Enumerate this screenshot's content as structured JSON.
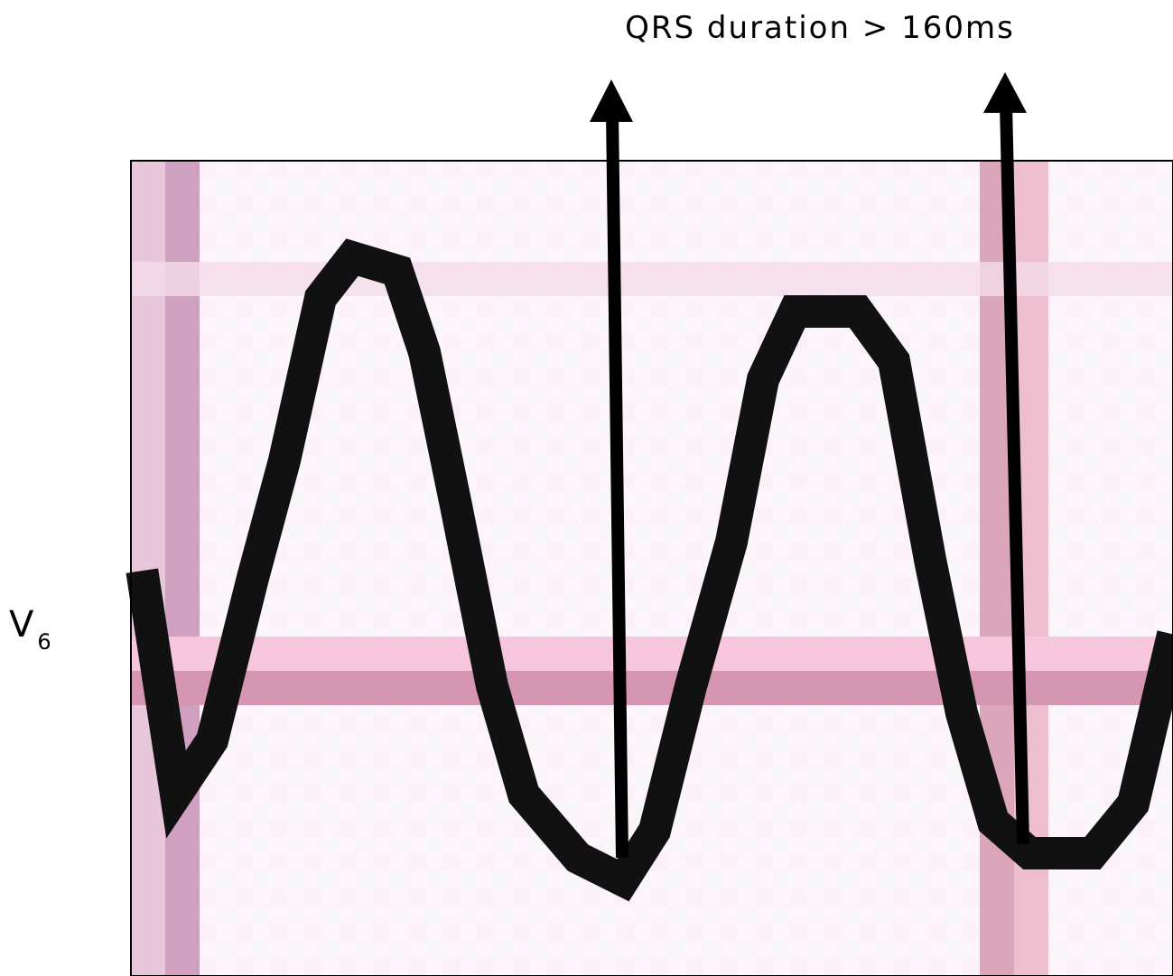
{
  "annotation": "QRS duration > 160ms",
  "lead": {
    "letter": "V",
    "subscript": "6"
  }
}
